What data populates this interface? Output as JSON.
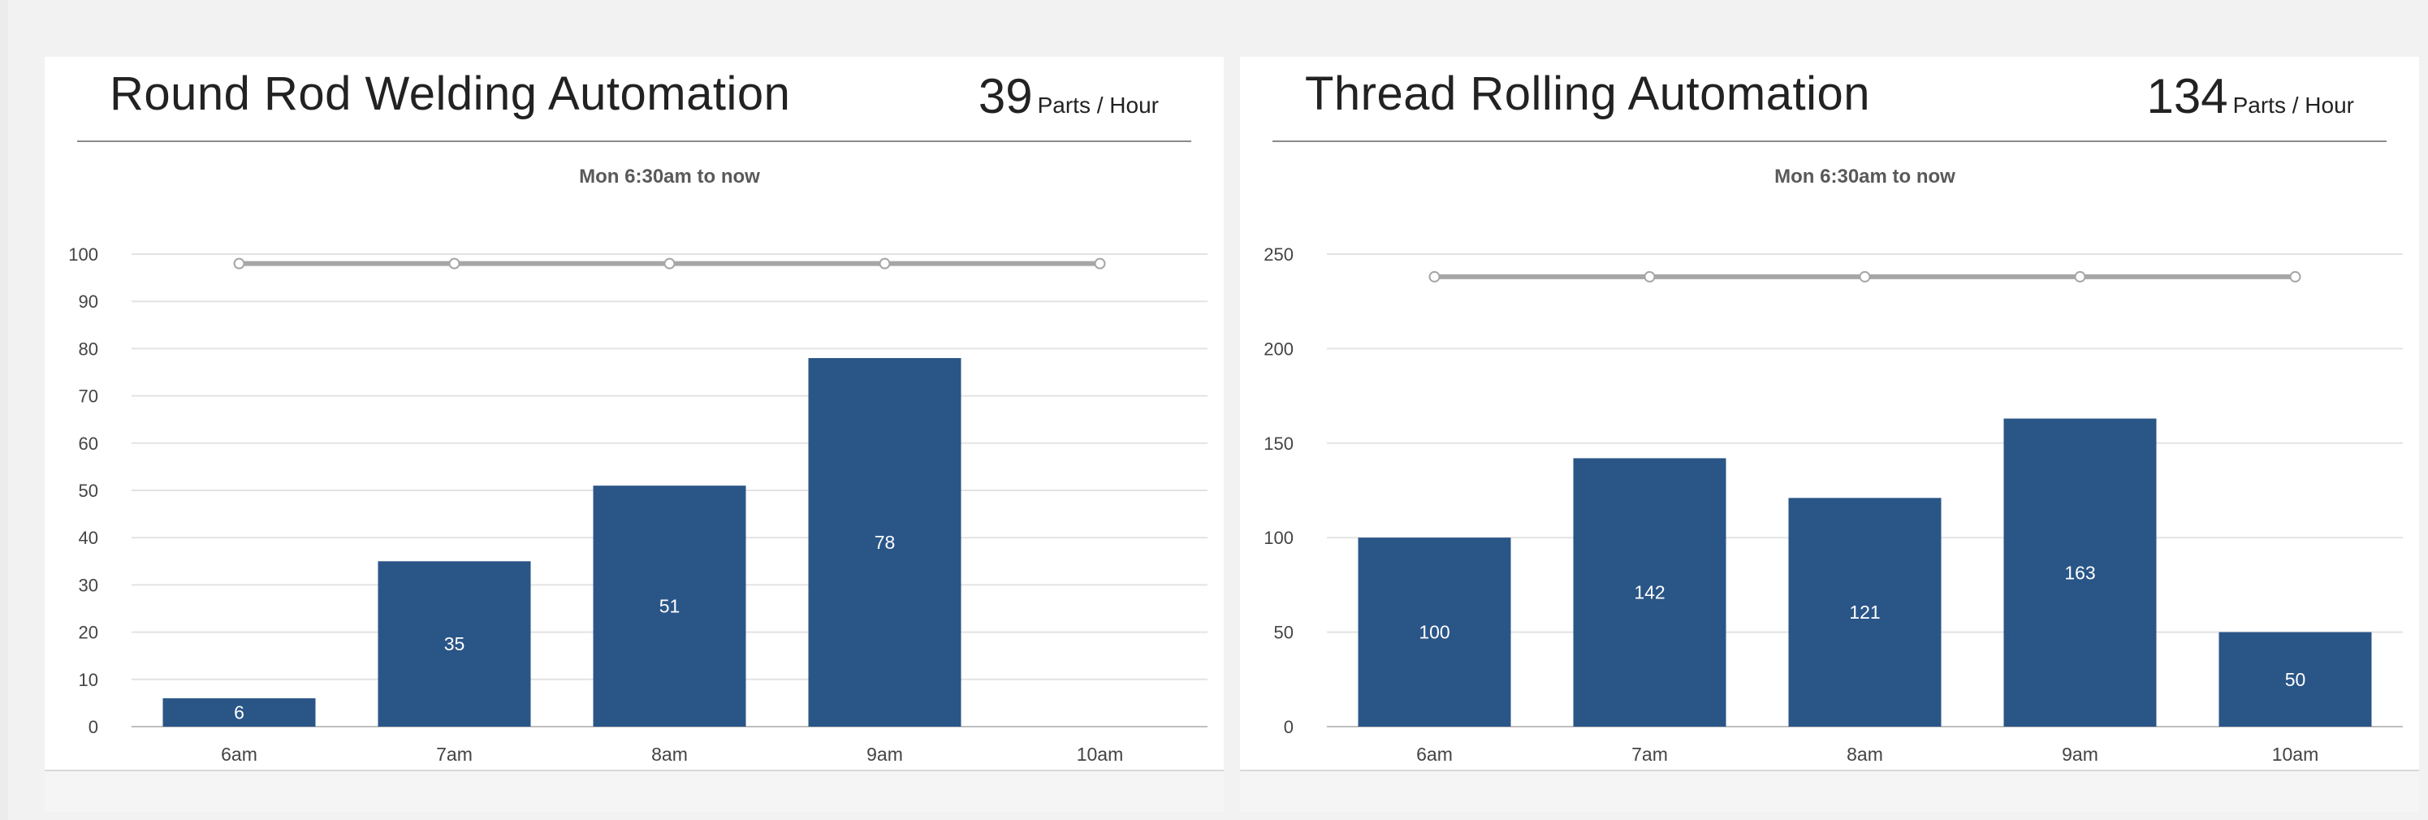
{
  "panels": [
    {
      "title": "Round Rod Welding Automation",
      "rate_value": "39",
      "rate_unit": "Parts / Hour"
    },
    {
      "title": "Thread Rolling Automation",
      "rate_value": "134",
      "rate_unit": "Parts / Hour"
    }
  ],
  "chart_data": [
    {
      "type": "bar",
      "title": "Mon 6:30am to now",
      "categories": [
        "6am",
        "7am",
        "8am",
        "9am",
        "10am"
      ],
      "values": [
        6,
        35,
        51,
        78,
        null
      ],
      "data_labels": [
        "6",
        "35",
        "51",
        "78",
        ""
      ],
      "target_line": [
        98,
        98,
        98,
        98,
        98
      ],
      "ylim": [
        0,
        100
      ],
      "yticks": [
        0,
        10,
        20,
        30,
        40,
        50,
        60,
        70,
        80,
        90,
        100
      ],
      "grid": true,
      "bar_color": "#2a5587",
      "line_color": "#a6a6a6"
    },
    {
      "type": "bar",
      "title": "Mon 6:30am to now",
      "categories": [
        "6am",
        "7am",
        "8am",
        "9am",
        "10am"
      ],
      "values": [
        100,
        142,
        121,
        163,
        50
      ],
      "data_labels": [
        "100",
        "142",
        "121",
        "163",
        "50"
      ],
      "target_line": [
        238,
        238,
        238,
        238,
        238
      ],
      "ylim": [
        0,
        250
      ],
      "yticks": [
        0,
        50,
        100,
        150,
        200,
        250
      ],
      "grid": true,
      "bar_color": "#2a5587",
      "line_color": "#a6a6a6"
    }
  ]
}
